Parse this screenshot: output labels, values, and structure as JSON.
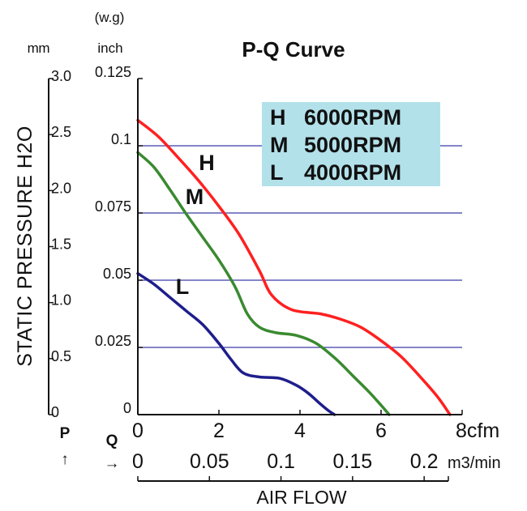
{
  "chart_data": {
    "type": "line",
    "title": "P-Q Curve",
    "ylabel": "STATIC PRESSURE H2O",
    "xlabel": "AIR FLOW",
    "y_units": {
      "mm": "mm",
      "inch_top": "(w.g)",
      "inch": "inch"
    },
    "y_mm_ticks": [
      "3.0",
      "2.5",
      "2.0",
      "1.5",
      "1.0",
      "0.5",
      "0"
    ],
    "y_inch_ticks": [
      "0.125",
      "0.1",
      "0.075",
      "0.05",
      "0.025",
      "0"
    ],
    "x_cfm_ticks": [
      "0",
      "2",
      "4",
      "6",
      "8cfm"
    ],
    "x_m3_ticks": [
      "0",
      "0.05",
      "0.1",
      "0.15",
      "0.2"
    ],
    "x_m3_unit": "m3/min",
    "p_label": "P",
    "q_label": "Q",
    "p_arrow": "↑",
    "q_arrow": "→",
    "xlim": [
      0,
      8
    ],
    "ylim_inch": [
      0,
      0.125
    ],
    "grid_inch": [
      0.1,
      0.075,
      0.05,
      0.025
    ],
    "grid_color": "#3a3aa8",
    "series": [
      {
        "name": "H",
        "color": "#ff2020",
        "x": [
          0,
          0.5,
          1.0,
          1.5,
          2.0,
          2.5,
          3.0,
          3.3,
          3.8,
          4.5,
          5.0,
          5.5,
          6.0,
          6.5,
          7.0,
          7.4,
          7.7
        ],
        "y": [
          0.1095,
          0.1035,
          0.0955,
          0.087,
          0.0775,
          0.067,
          0.0535,
          0.0445,
          0.039,
          0.0375,
          0.0355,
          0.0325,
          0.0275,
          0.0215,
          0.0135,
          0.0065,
          0
        ]
      },
      {
        "name": "M",
        "color": "#3a8a30",
        "x": [
          0,
          0.4,
          0.8,
          1.2,
          1.6,
          2.0,
          2.4,
          2.7,
          3.0,
          3.4,
          3.9,
          4.4,
          4.9,
          5.3,
          5.7,
          6.0,
          6.2
        ],
        "y": [
          0.0975,
          0.092,
          0.0835,
          0.0745,
          0.066,
          0.0575,
          0.0475,
          0.0375,
          0.0325,
          0.0305,
          0.0295,
          0.0265,
          0.0205,
          0.0145,
          0.0085,
          0.0035,
          0
        ]
      },
      {
        "name": "L",
        "color": "#1e1e8c",
        "x": [
          0,
          0.4,
          0.8,
          1.2,
          1.6,
          2.0,
          2.3,
          2.6,
          3.0,
          3.5,
          3.9,
          4.2,
          4.5,
          4.7,
          4.85
        ],
        "y": [
          0.0525,
          0.0485,
          0.0435,
          0.0385,
          0.0335,
          0.0265,
          0.0205,
          0.0155,
          0.014,
          0.0135,
          0.011,
          0.008,
          0.004,
          0.0015,
          0
        ]
      }
    ],
    "curve_labels": [
      "H",
      "M",
      "L"
    ],
    "legend": [
      {
        "key": "H",
        "rpm": "6000RPM"
      },
      {
        "key": "M",
        "rpm": "5000RPM"
      },
      {
        "key": "L",
        "rpm": "4000RPM"
      }
    ],
    "legend_color": "#b3e1ea",
    "legend_position": "top-right"
  }
}
